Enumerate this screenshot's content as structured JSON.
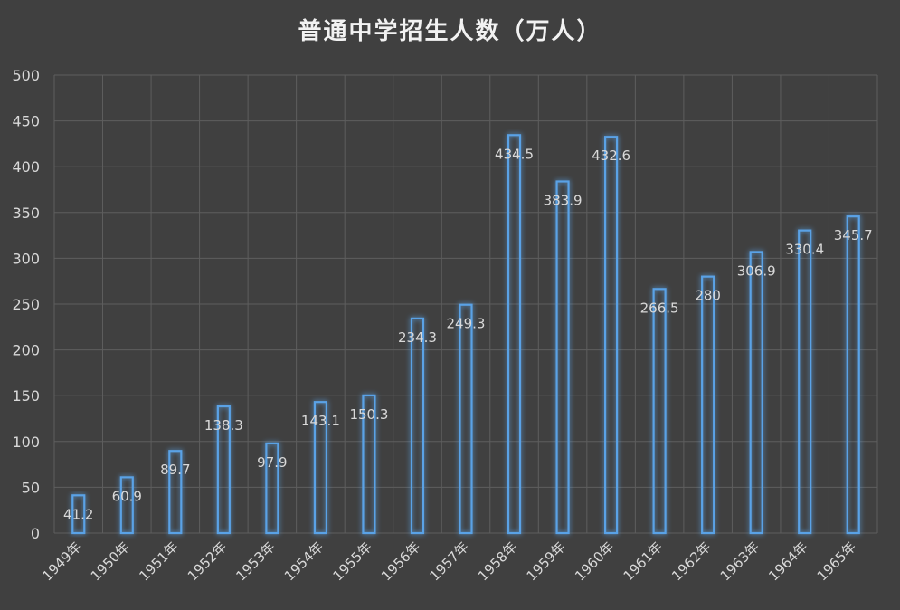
{
  "chart_data": {
    "type": "bar",
    "title": "普通中学招生人数（万人）",
    "categories": [
      "1949年",
      "1950年",
      "1951年",
      "1952年",
      "1953年",
      "1954年",
      "1955年",
      "1956年",
      "1957年",
      "1958年",
      "1959年",
      "1960年",
      "1961年",
      "1962年",
      "1963年",
      "1964年",
      "1965年"
    ],
    "values": [
      41.2,
      60.9,
      89.7,
      138.3,
      97.9,
      143.1,
      150.3,
      234.3,
      249.3,
      434.5,
      383.9,
      432.6,
      266.5,
      280,
      306.9,
      330.4,
      345.7
    ],
    "xlabel": "",
    "ylabel": "",
    "ylim": [
      0,
      500
    ],
    "yticks": [
      0,
      50,
      100,
      150,
      200,
      250,
      300,
      350,
      400,
      450,
      500
    ],
    "grid": true,
    "data_labels": true
  },
  "colors": {
    "background": "#404040",
    "grid": "#5e5e5e",
    "bar_stroke": "#5aa2e6",
    "bar_glow": "#2f7fd0",
    "text": "#d9d9d9",
    "title": "#f2f2f2"
  }
}
